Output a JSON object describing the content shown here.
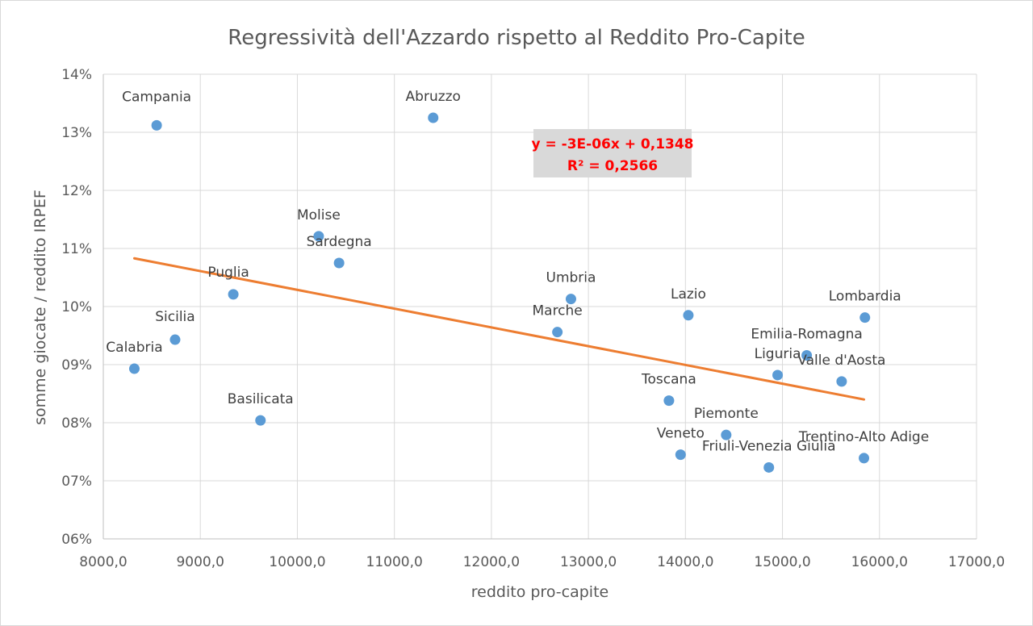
{
  "chart_data": {
    "type": "scatter",
    "title": "Regressività dell'Azzardo rispetto al Reddito Pro-Capite",
    "xlabel": "reddito pro-capite",
    "ylabel": "somme giocate / reddito IRPEF",
    "xlim": [
      8000,
      17000
    ],
    "ylim": [
      0.06,
      0.14
    ],
    "x_ticks": [
      8000,
      9000,
      10000,
      11000,
      12000,
      13000,
      14000,
      15000,
      16000,
      17000
    ],
    "x_tick_labels": [
      "8000,0",
      "9000,0",
      "10000,0",
      "11000,0",
      "12000,0",
      "13000,0",
      "14000,0",
      "15000,0",
      "16000,0",
      "17000,0"
    ],
    "y_ticks": [
      0.06,
      0.07,
      0.08,
      0.09,
      0.1,
      0.11,
      0.12,
      0.13,
      0.14
    ],
    "y_tick_labels": [
      "06%",
      "07%",
      "08%",
      "09%",
      "10%",
      "11%",
      "12%",
      "13%",
      "14%"
    ],
    "grid": true,
    "marker_color": "#5b9bd5",
    "trendline_color": "#ed7d31",
    "points": [
      {
        "name": "Campania",
        "x": 8550,
        "y": 0.1312
      },
      {
        "name": "Abruzzo",
        "x": 11400,
        "y": 0.1325
      },
      {
        "name": "Molise",
        "x": 10220,
        "y": 0.1121
      },
      {
        "name": "Sardegna",
        "x": 10430,
        "y": 0.1075
      },
      {
        "name": "Puglia",
        "x": 9340,
        "y": 0.1021
      },
      {
        "name": "Sicilia",
        "x": 8740,
        "y": 0.0943
      },
      {
        "name": "Calabria",
        "x": 8320,
        "y": 0.0893
      },
      {
        "name": "Basilicata",
        "x": 9620,
        "y": 0.0804
      },
      {
        "name": "Umbria",
        "x": 12820,
        "y": 0.1013
      },
      {
        "name": "Marche",
        "x": 12680,
        "y": 0.0956
      },
      {
        "name": "Lazio",
        "x": 14030,
        "y": 0.0985
      },
      {
        "name": "Lombardia",
        "x": 15850,
        "y": 0.0981
      },
      {
        "name": "Emilia-Romagna",
        "x": 15250,
        "y": 0.0916
      },
      {
        "name": "Liguria",
        "x": 14950,
        "y": 0.0882
      },
      {
        "name": "Valle d'Aosta",
        "x": 15610,
        "y": 0.0871
      },
      {
        "name": "Toscana",
        "x": 13830,
        "y": 0.0838
      },
      {
        "name": "Piemonte",
        "x": 14420,
        "y": 0.0779
      },
      {
        "name": "Veneto",
        "x": 13950,
        "y": 0.0745
      },
      {
        "name": "Friuli-Venezia Giulia",
        "x": 14860,
        "y": 0.0723
      },
      {
        "name": "Trentino-Alto Adige",
        "x": 15840,
        "y": 0.0739
      }
    ],
    "trendline": {
      "type": "linear",
      "start": [
        8320,
        0.1083
      ],
      "end": [
        15840,
        0.084
      ],
      "equation": "y = -3E-06x + 0,1348",
      "r_squared": "R² = 0,2566"
    }
  }
}
